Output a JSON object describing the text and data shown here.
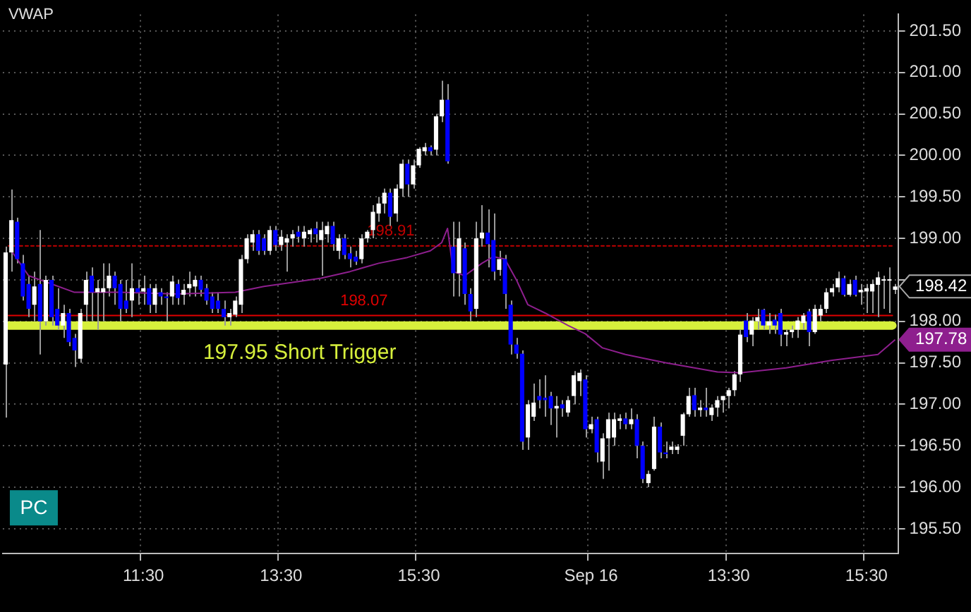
{
  "chart_data": {
    "type": "candlestick",
    "title": "VWAP",
    "categories": [
      null,
      null,
      null,
      null,
      null,
      null,
      null,
      null,
      null,
      null,
      null,
      null,
      null,
      null,
      null,
      null,
      null,
      null,
      null,
      null,
      null,
      null,
      null,
      null,
      "11:30",
      null,
      null,
      null,
      null,
      null,
      null,
      null,
      null,
      null,
      null,
      null,
      null,
      null,
      null,
      null,
      null,
      null,
      null,
      null,
      null,
      null,
      null,
      null,
      "13:30",
      null,
      null,
      null,
      null,
      null,
      null,
      null,
      null,
      null,
      null,
      null,
      null,
      null,
      null,
      null,
      null,
      null,
      null,
      null,
      null,
      null,
      null,
      null,
      "15:30",
      null,
      null,
      null,
      null,
      null,
      null,
      null,
      null,
      null,
      null,
      null,
      null,
      null,
      null,
      null,
      null,
      null,
      null,
      null,
      null,
      null,
      null,
      null,
      null,
      null,
      null,
      null,
      null,
      null,
      "Sep 16",
      null,
      null,
      null,
      null,
      null,
      null,
      null,
      null,
      null,
      null,
      null,
      null,
      null,
      null,
      null,
      null,
      null,
      null,
      null,
      null,
      null,
      null,
      null,
      "13:30",
      null,
      null,
      null,
      null,
      null,
      null,
      null,
      null,
      null,
      null,
      null,
      null,
      null,
      null,
      null,
      null,
      null,
      null,
      null,
      null,
      null,
      null,
      null,
      "15:30",
      null,
      null,
      null,
      null,
      null
    ],
    "series": [
      {
        "ohlc": [
          [
            197.48,
            198.9,
            196.84,
            198.83
          ],
          [
            198.83,
            199.59,
            198.6,
            199.22
          ],
          [
            199.2,
            199.25,
            198.7,
            198.75
          ],
          [
            198.7,
            198.8,
            198.25,
            198.3
          ],
          [
            198.45,
            198.55,
            198.05,
            198.15
          ],
          [
            198.2,
            198.6,
            198.0,
            198.42
          ],
          [
            198.45,
            199.1,
            197.6,
            198.0
          ],
          [
            198.0,
            198.55,
            197.95,
            198.5
          ],
          [
            198.5,
            198.55,
            197.95,
            198.05
          ],
          [
            198.15,
            198.4,
            197.9,
            197.95
          ],
          [
            197.95,
            198.2,
            197.8,
            198.1
          ],
          [
            198.1,
            198.15,
            197.7,
            197.75
          ],
          [
            197.8,
            197.85,
            197.45,
            197.65
          ],
          [
            197.55,
            198.15,
            197.5,
            198.1
          ],
          [
            198.2,
            198.6,
            198.0,
            198.5
          ],
          [
            198.55,
            198.65,
            198.0,
            198.35
          ],
          [
            198.35,
            198.5,
            197.9,
            198.4
          ],
          [
            198.35,
            198.7,
            198.0,
            198.4
          ],
          [
            198.4,
            198.7,
            198.3,
            198.55
          ],
          [
            198.55,
            198.6,
            198.2,
            198.4
          ],
          [
            198.45,
            198.5,
            198.0,
            198.15
          ],
          [
            198.25,
            198.5,
            198.1,
            198.15
          ],
          [
            198.25,
            198.7,
            198.05,
            198.4
          ],
          [
            198.4,
            198.5,
            198.2,
            198.35
          ],
          [
            198.36,
            198.55,
            198.2,
            198.4
          ],
          [
            198.4,
            198.45,
            198.1,
            198.2
          ],
          [
            198.2,
            198.45,
            198.1,
            198.4
          ],
          [
            198.35,
            198.4,
            198.2,
            198.3
          ],
          [
            198.3,
            198.35,
            198.0,
            198.28
          ],
          [
            198.3,
            198.55,
            198.2,
            198.48
          ],
          [
            198.45,
            198.5,
            198.2,
            198.28
          ],
          [
            198.32,
            198.45,
            198.2,
            198.38
          ],
          [
            198.4,
            198.6,
            198.3,
            198.45
          ],
          [
            198.42,
            198.55,
            198.3,
            198.5
          ],
          [
            198.5,
            198.55,
            198.3,
            198.38
          ],
          [
            198.4,
            198.45,
            198.2,
            198.25
          ],
          [
            198.3,
            198.35,
            198.1,
            198.15
          ],
          [
            198.25,
            198.35,
            198.1,
            198.15
          ],
          [
            198.15,
            198.25,
            197.95,
            198.05
          ],
          [
            198.05,
            198.15,
            197.95,
            198.1
          ],
          [
            198.08,
            198.3,
            198.05,
            198.25
          ],
          [
            198.2,
            198.8,
            198.1,
            198.75
          ],
          [
            198.75,
            199.05,
            198.7,
            199.0
          ],
          [
            198.95,
            199.1,
            198.85,
            199.05
          ],
          [
            199.05,
            199.1,
            198.8,
            198.85
          ],
          [
            199.0,
            199.05,
            198.8,
            198.85
          ],
          [
            198.85,
            199.15,
            198.8,
            199.1
          ],
          [
            199.1,
            199.15,
            198.85,
            198.92
          ],
          [
            198.92,
            199.1,
            198.85,
            199.02
          ],
          [
            198.95,
            199.05,
            198.6,
            199.0
          ],
          [
            199.0,
            199.1,
            198.9,
            199.05
          ],
          [
            199.08,
            199.15,
            198.95,
            199.02
          ],
          [
            199.0,
            199.15,
            198.9,
            199.08
          ],
          [
            199.05,
            199.12,
            198.95,
            199.1
          ],
          [
            199.12,
            199.2,
            198.95,
            199.05
          ],
          [
            198.98,
            199.2,
            198.55,
            199.1
          ],
          [
            199.05,
            199.2,
            198.95,
            199.15
          ],
          [
            199.15,
            199.2,
            198.85,
            198.93
          ],
          [
            198.85,
            199.05,
            198.75,
            199.0
          ],
          [
            199.0,
            199.05,
            198.75,
            198.8
          ],
          [
            198.82,
            198.9,
            198.65,
            198.75
          ],
          [
            198.78,
            198.85,
            198.68,
            198.72
          ],
          [
            198.75,
            199.05,
            198.7,
            199.0
          ],
          [
            199.0,
            199.1,
            198.95,
            199.08
          ],
          [
            199.1,
            199.4,
            199.0,
            199.32
          ],
          [
            199.3,
            199.5,
            199.2,
            199.42
          ],
          [
            199.42,
            199.6,
            199.3,
            199.55
          ],
          [
            199.55,
            199.6,
            199.15,
            199.26
          ],
          [
            199.3,
            199.65,
            199.2,
            199.6
          ],
          [
            199.6,
            199.95,
            199.5,
            199.9
          ],
          [
            199.9,
            199.95,
            199.5,
            199.65
          ],
          [
            199.65,
            199.95,
            199.6,
            199.88
          ],
          [
            199.88,
            200.1,
            199.85,
            200.08
          ],
          [
            200.05,
            200.15,
            200.0,
            200.1
          ],
          [
            200.1,
            200.12,
            200.0,
            200.05
          ],
          [
            200.07,
            200.5,
            200.0,
            200.47
          ],
          [
            200.47,
            200.9,
            200.4,
            200.67
          ],
          [
            200.67,
            200.86,
            199.9,
            199.93
          ],
          [
            198.9,
            199.2,
            198.3,
            198.58
          ],
          [
            198.58,
            199.2,
            198.3,
            199.0
          ],
          [
            198.88,
            198.95,
            198.2,
            198.33
          ],
          [
            198.33,
            198.4,
            198.0,
            198.12
          ],
          [
            198.15,
            199.2,
            198.05,
            199.0
          ],
          [
            199.0,
            199.4,
            198.9,
            199.07
          ],
          [
            199.07,
            199.35,
            198.65,
            198.93
          ],
          [
            198.98,
            199.3,
            198.5,
            198.6
          ],
          [
            198.62,
            198.85,
            198.55,
            198.75
          ],
          [
            198.75,
            198.8,
            198.15,
            198.33
          ],
          [
            198.2,
            198.25,
            197.6,
            197.72
          ],
          [
            197.72,
            197.8,
            197.55,
            197.61
          ],
          [
            197.61,
            197.65,
            196.45,
            196.55
          ],
          [
            196.6,
            197.05,
            196.45,
            197.0
          ],
          [
            196.85,
            197.25,
            196.8,
            197.02
          ],
          [
            197.1,
            197.3,
            196.95,
            197.05
          ],
          [
            197.08,
            197.35,
            196.85,
            197.05
          ],
          [
            197.1,
            197.15,
            196.75,
            196.95
          ],
          [
            196.95,
            197.1,
            196.6,
            196.98
          ],
          [
            197.0,
            197.05,
            196.85,
            196.95
          ],
          [
            196.9,
            197.1,
            196.85,
            197.05
          ],
          [
            197.1,
            197.4,
            197.0,
            197.35
          ],
          [
            197.28,
            197.42,
            197.1,
            197.38
          ],
          [
            197.3,
            197.35,
            196.6,
            196.7
          ],
          [
            196.7,
            196.85,
            196.65,
            196.76
          ],
          [
            196.82,
            196.85,
            196.3,
            196.42
          ],
          [
            196.31,
            196.65,
            196.1,
            196.59
          ],
          [
            196.59,
            196.9,
            196.2,
            196.82
          ],
          [
            196.6,
            196.9,
            196.5,
            196.82
          ],
          [
            196.8,
            196.88,
            196.7,
            196.83
          ],
          [
            196.83,
            196.9,
            196.7,
            196.76
          ],
          [
            196.76,
            196.95,
            196.7,
            196.82
          ],
          [
            196.82,
            196.88,
            196.35,
            196.5
          ],
          [
            196.5,
            196.55,
            196.05,
            196.1
          ],
          [
            196.05,
            196.2,
            196.0,
            196.16
          ],
          [
            196.22,
            196.85,
            196.2,
            196.73
          ],
          [
            196.73,
            196.78,
            196.35,
            196.42
          ],
          [
            196.42,
            196.55,
            196.35,
            196.4
          ],
          [
            196.45,
            196.55,
            196.4,
            196.49
          ],
          [
            196.45,
            196.52,
            196.4,
            196.49
          ],
          [
            196.62,
            196.9,
            196.5,
            196.88
          ],
          [
            196.88,
            197.2,
            196.85,
            197.1
          ],
          [
            197.11,
            197.2,
            196.85,
            196.93
          ],
          [
            196.93,
            197.05,
            196.85,
            196.96
          ],
          [
            196.96,
            197.2,
            196.85,
            196.93
          ],
          [
            196.87,
            197.0,
            196.8,
            196.96
          ],
          [
            196.96,
            197.1,
            196.85,
            197.05
          ],
          [
            197.05,
            197.1,
            196.9,
            197.1
          ],
          [
            197.1,
            197.2,
            196.95,
            197.17
          ],
          [
            197.17,
            197.4,
            197.1,
            197.36
          ],
          [
            197.36,
            197.9,
            197.27,
            197.84
          ],
          [
            198.01,
            198.1,
            197.75,
            197.81
          ],
          [
            197.84,
            198.05,
            197.7,
            198.01
          ],
          [
            198.0,
            198.15,
            197.9,
            198.05
          ],
          [
            198.14,
            198.15,
            197.9,
            197.95
          ],
          [
            197.95,
            198.1,
            197.85,
            198.0
          ],
          [
            198.02,
            198.08,
            197.85,
            197.95
          ],
          [
            198.1,
            198.15,
            197.7,
            197.84
          ],
          [
            197.84,
            197.9,
            197.7,
            197.87
          ],
          [
            197.87,
            197.95,
            197.8,
            197.9
          ],
          [
            197.9,
            198.05,
            197.8,
            198.01
          ],
          [
            197.98,
            198.1,
            197.9,
            198.07
          ],
          [
            198.12,
            198.15,
            197.7,
            197.87
          ],
          [
            197.87,
            198.2,
            197.85,
            198.15
          ],
          [
            198.07,
            198.2,
            198.0,
            198.15
          ],
          [
            198.15,
            198.4,
            198.1,
            198.35
          ],
          [
            198.35,
            198.45,
            198.3,
            198.4
          ],
          [
            198.41,
            198.6,
            198.35,
            198.52
          ],
          [
            198.52,
            198.55,
            198.3,
            198.32
          ],
          [
            198.32,
            198.5,
            198.3,
            198.45
          ],
          [
            198.5,
            198.55,
            198.3,
            198.32
          ],
          [
            198.35,
            198.45,
            198.2,
            198.38
          ],
          [
            198.36,
            198.45,
            198.1,
            198.4
          ],
          [
            198.36,
            198.5,
            198.1,
            198.45
          ],
          [
            198.44,
            198.6,
            198.05,
            198.53
          ],
          [
            198.49,
            198.55,
            198.15,
            198.5
          ],
          [
            198.49,
            198.65,
            198.1,
            198.5
          ],
          [
            198.38,
            198.45,
            198.33,
            198.42
          ]
        ]
      },
      {
        "type": "line",
        "color": "#8e1f8e",
        "values": [
          null,
          198.85,
          198.75,
          null,
          198.55,
          null,
          198.5,
          null,
          198.45,
          null,
          null,
          null,
          198.35,
          null,
          null,
          null,
          null,
          null,
          null,
          null,
          198.35,
          null,
          null,
          null,
          null,
          null,
          null,
          null,
          null,
          null,
          198.33,
          null,
          null,
          null,
          null,
          null,
          null,
          null,
          null,
          null,
          198.35,
          null,
          null,
          null,
          null,
          198.42,
          null,
          null,
          null,
          null,
          198.47,
          null,
          null,
          null,
          null,
          198.52,
          null,
          null,
          null,
          null,
          198.6,
          null,
          null,
          null,
          null,
          198.7,
          null,
          null,
          null,
          null,
          198.77,
          null,
          null,
          null,
          198.85,
          null,
          198.95,
          199.12,
          198.6,
          null,
          198.55,
          null,
          null,
          198.7,
          null,
          198.78,
          null,
          198.75,
          null,
          198.5,
          null,
          198.2,
          null,
          null,
          198.1,
          null,
          null,
          null,
          197.95,
          null,
          null,
          197.85,
          null,
          null,
          197.68,
          null,
          null,
          null,
          197.6,
          null,
          null,
          null,
          null,
          null,
          null,
          197.5,
          null,
          null,
          null,
          null,
          null,
          null,
          null,
          null,
          197.39,
          null,
          null,
          null,
          197.38,
          null,
          null,
          null,
          null,
          null,
          null,
          null,
          197.44,
          null,
          null,
          null,
          null,
          null,
          null,
          null,
          197.53,
          null,
          null,
          null,
          null,
          null,
          null,
          null,
          197.6,
          null,
          null,
          197.78
        ]
      }
    ],
    "ylim": [
      195.2,
      201.7
    ],
    "yticks": [
      {
        "value": 195.5,
        "label": "195.50"
      },
      {
        "value": 196,
        "label": "196.00"
      },
      {
        "value": 196.5,
        "label": "196.50"
      },
      {
        "value": 197,
        "label": "197.00"
      },
      {
        "value": 197.5,
        "label": "197.50"
      },
      {
        "value": 198,
        "label": "198.00"
      },
      {
        "value": 198.5,
        "label": null
      },
      {
        "value": 199,
        "label": "199.00"
      },
      {
        "value": 199.5,
        "label": "199.50"
      },
      {
        "value": 200,
        "label": "200.00"
      },
      {
        "value": 200.5,
        "label": "200.50"
      },
      {
        "value": 201,
        "label": "201.00"
      },
      {
        "value": 201.5,
        "label": "201.50"
      }
    ],
    "grid": true,
    "legend": false,
    "ref_lines": [
      {
        "axis": "y",
        "value": 197.95,
        "label": "197.95 Short Trigger",
        "color": "#d7f03c"
      },
      {
        "axis": "y",
        "value": 198.07,
        "label": "198.07",
        "color": "#e00000"
      },
      {
        "axis": "y",
        "value": 198.91,
        "label": "198.91",
        "color": "#c00000",
        "line_style": "dotted"
      }
    ],
    "annotations": [
      "198.42",
      "197.78",
      "PC"
    ]
  }
}
